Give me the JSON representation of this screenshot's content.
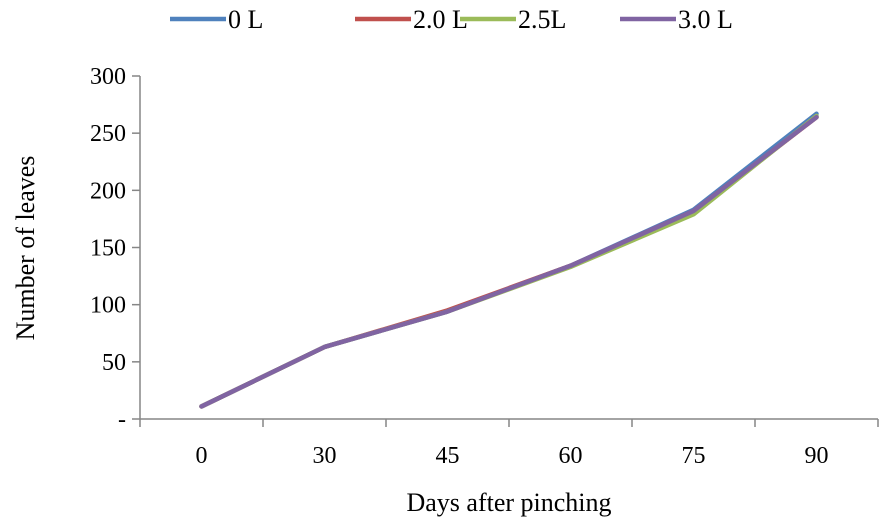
{
  "chart_data": {
    "type": "line",
    "xlabel": "Days after pinching",
    "ylabel": "Number of leaves",
    "categories": [
      "0",
      "30",
      "45",
      "60",
      "75",
      "90"
    ],
    "ylim": [
      0,
      300
    ],
    "yticks": [
      {
        "value": 0,
        "label": "-"
      },
      {
        "value": 50,
        "label": "50"
      },
      {
        "value": 100,
        "label": "100"
      },
      {
        "value": 150,
        "label": "150"
      },
      {
        "value": 200,
        "label": "200"
      },
      {
        "value": 250,
        "label": "250"
      },
      {
        "value": 300,
        "label": "300"
      }
    ],
    "grid": false,
    "legend_position": "top",
    "series": [
      {
        "name": "0 L",
        "color": "#4f81bd",
        "values": [
          11,
          63,
          94,
          134,
          183,
          267
        ]
      },
      {
        "name": "2.0 L",
        "color": "#c0504d",
        "values": [
          11,
          63,
          95,
          134,
          181,
          264
        ]
      },
      {
        "name": "2.5L",
        "color": "#9bbb59",
        "values": [
          11,
          63,
          94,
          133,
          179,
          265
        ]
      },
      {
        "name": "3.0 L",
        "color": "#8064a2",
        "values": [
          11,
          63,
          94,
          134,
          182,
          264
        ]
      }
    ]
  }
}
